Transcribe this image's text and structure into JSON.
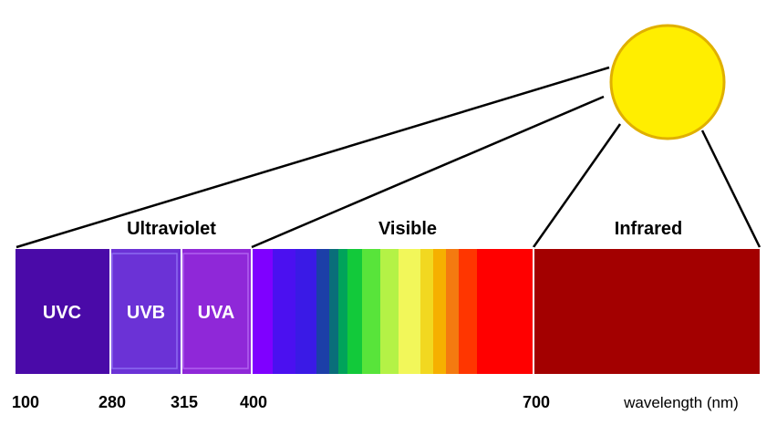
{
  "regions": {
    "ultraviolet": "Ultraviolet",
    "visible": "Visible",
    "infrared": "Infrared"
  },
  "uv_bands": [
    {
      "label": "UVC",
      "from_nm": 100,
      "to_nm": 280
    },
    {
      "label": "UVB",
      "from_nm": 280,
      "to_nm": 315
    },
    {
      "label": "UVA",
      "from_nm": 315,
      "to_nm": 400
    }
  ],
  "ticks": [
    "100",
    "280",
    "315",
    "400",
    "700"
  ],
  "axis_unit": "wavelength (nm)",
  "colors": {
    "sun_fill": "#ffee00",
    "sun_outline": "#e0b000",
    "uvc": "#4a0aa8",
    "uvb": "#6b32d6",
    "uva": "#8f28d8",
    "infrared": "#a30000",
    "visible_spectrum": [
      "#7f00ff",
      "#4b10f0",
      "#3a1ae6",
      "#1c3fa8",
      "#0a6e7a",
      "#00a35a",
      "#12c93a",
      "#58e43a",
      "#b4f246",
      "#f2f75a",
      "#f2d820",
      "#f6b000",
      "#f47a10",
      "#ff3600",
      "#ff0000"
    ]
  }
}
